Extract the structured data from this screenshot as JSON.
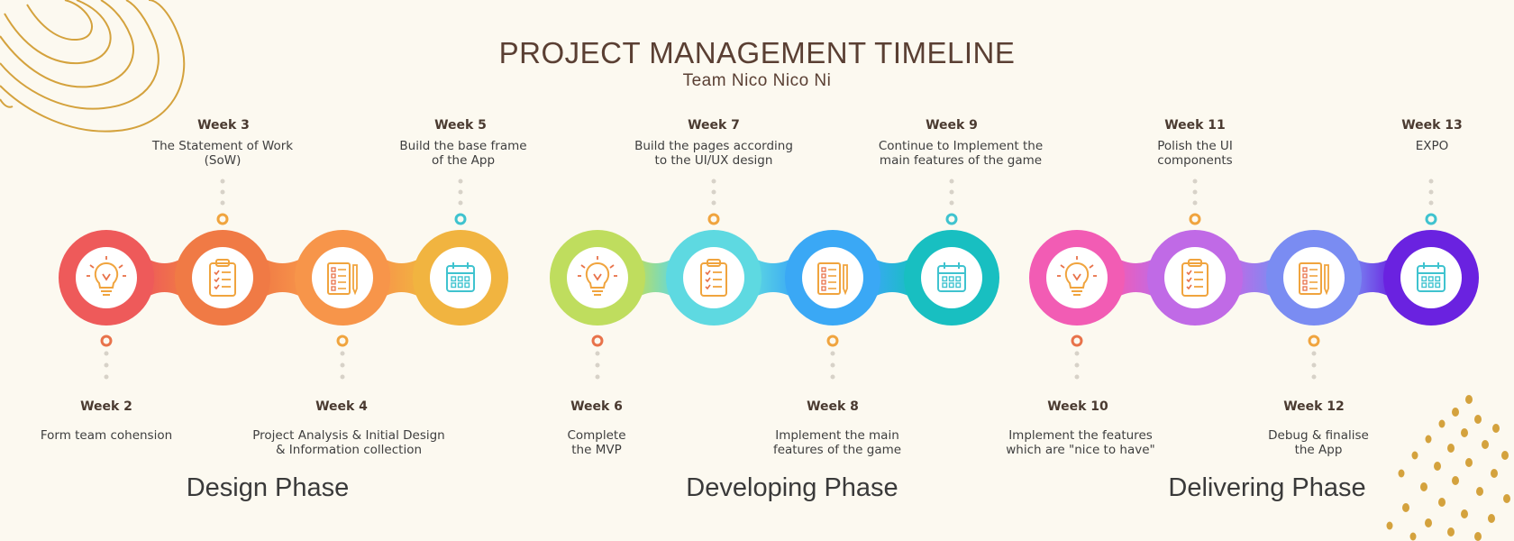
{
  "header": {
    "title": "PROJECT MANAGEMENT TIMELINE",
    "subtitle": "Team Nico Nico Ni"
  },
  "phases": [
    {
      "label": "Design Phase"
    },
    {
      "label": "Developing Phase"
    },
    {
      "label": "Delivering Phase"
    }
  ],
  "milestones": [
    {
      "week": "Week 2",
      "line1": "Form team cohension",
      "line2": "",
      "icon": "lightbulb-icon",
      "color": "#ee5a5a"
    },
    {
      "week": "Week 3",
      "line1": "The Statement of Work",
      "line2": "(SoW)",
      "icon": "clipboard-checklist-icon",
      "color": "#f07a45"
    },
    {
      "week": "Week 4",
      "line1": "Project Analysis & Initial Design",
      "line2": "& Information collection",
      "icon": "document-pencil-icon",
      "color": "#f7954a"
    },
    {
      "week": "Week 5",
      "line1": "Build the base frame",
      "line2": "of the App",
      "icon": "calendar-icon",
      "color": "#f1b440"
    },
    {
      "week": "Week 6",
      "line1": "Complete",
      "line2": "the MVP",
      "icon": "lightbulb-icon",
      "color": "#bfdd5e"
    },
    {
      "week": "Week 7",
      "line1": "Build the pages according",
      "line2": "to the UI/UX design",
      "icon": "clipboard-checklist-icon",
      "color": "#5ed9e1"
    },
    {
      "week": "Week 8",
      "line1": "Implement the main",
      "line2": "features of the game",
      "icon": "document-pencil-icon",
      "color": "#3aa8f5"
    },
    {
      "week": "Week 9",
      "line1": "Continue to Implement the",
      "line2": "main features of the game",
      "icon": "calendar-icon",
      "color": "#18bfc1"
    },
    {
      "week": "Week 10",
      "line1": "Implement the features",
      "line2": "which are \"nice to have\"",
      "icon": "lightbulb-icon",
      "color": "#f25cb4"
    },
    {
      "week": "Week 11",
      "line1": "Polish the UI",
      "line2": "components",
      "icon": "clipboard-checklist-icon",
      "color": "#c06ae6"
    },
    {
      "week": "Week 12",
      "line1": "Debug & finalise",
      "line2": "the App",
      "icon": "document-pencil-icon",
      "color": "#7a8cf2"
    },
    {
      "week": "Week 13",
      "line1": "EXPO",
      "line2": "",
      "icon": "calendar-icon",
      "color": "#6a22e0"
    }
  ],
  "colors": {
    "background": "#fcf9f0",
    "decoration": "#d4a23d",
    "marker_orange": "#f0a43e",
    "marker_teal": "#3fc3cf",
    "marker_red": "#e8724a"
  }
}
